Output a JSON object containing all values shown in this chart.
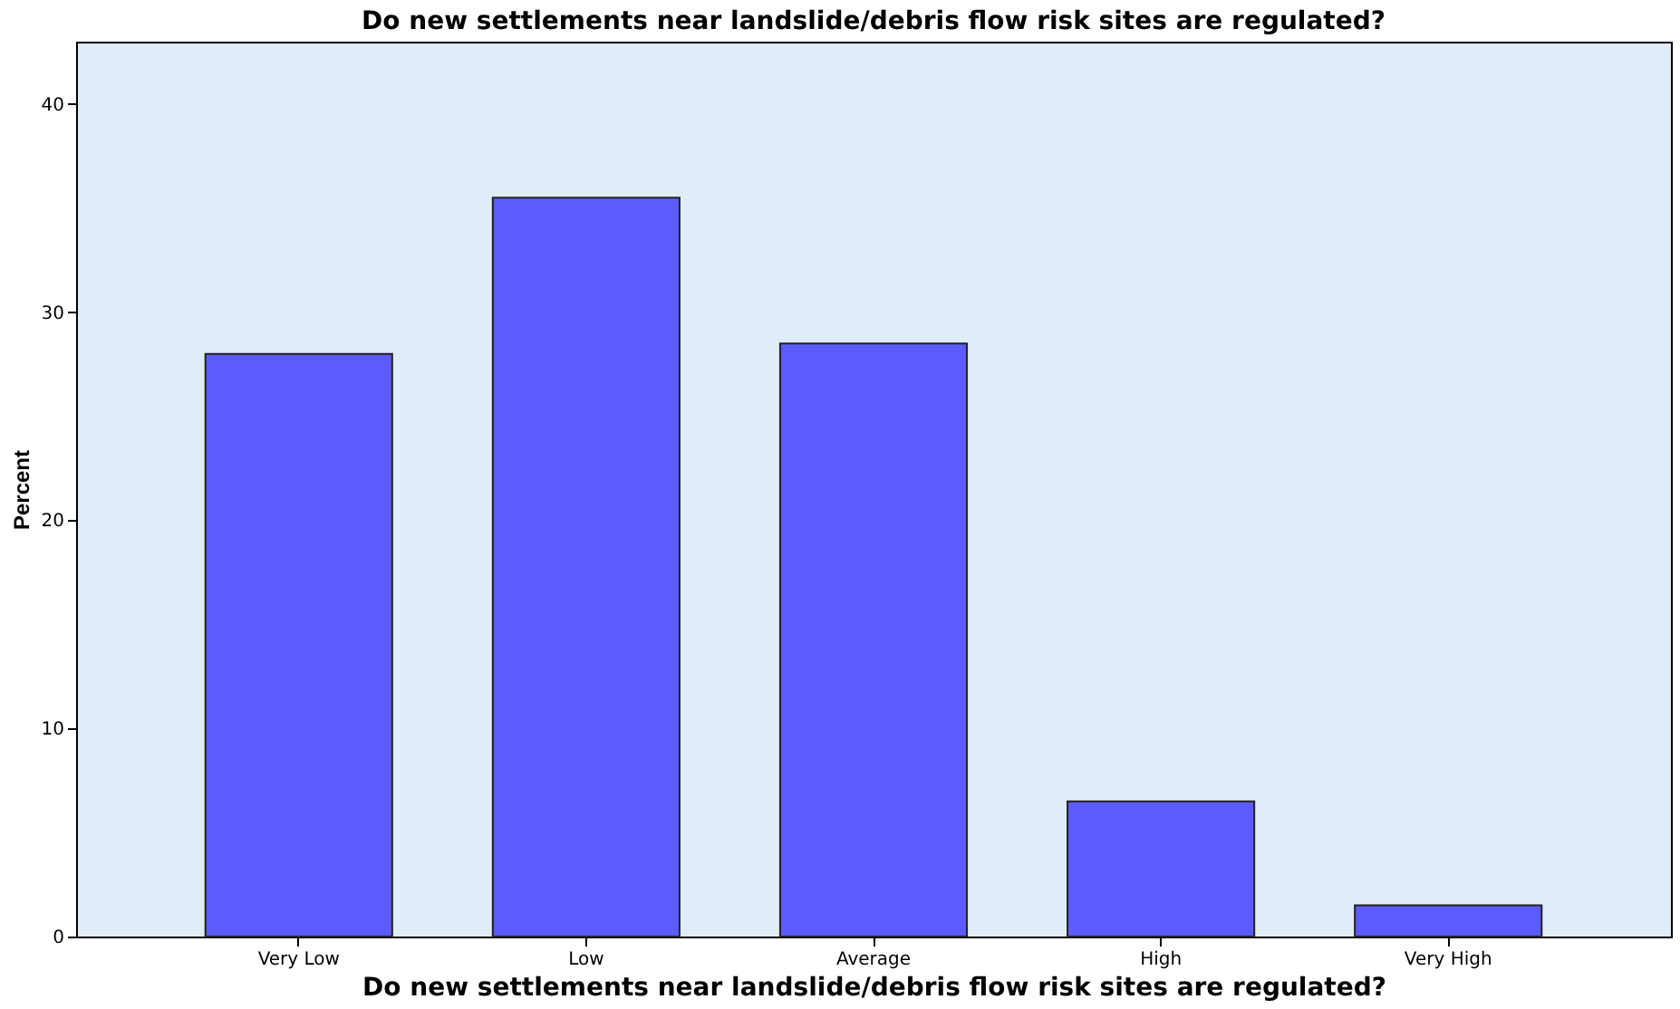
{
  "chart_data": {
    "type": "bar",
    "title": "Do new settlements near landslide/debris flow risk sites are regulated?",
    "xlabel": "Do new settlements near landslide/debris flow risk sites are regulated?",
    "ylabel": "Percent",
    "categories": [
      "Very Low",
      "Low",
      "Average",
      "High",
      "Very High"
    ],
    "values": [
      28,
      35.5,
      28.5,
      6.5,
      1.5
    ],
    "color": "#5b5bff",
    "ylim": [
      0,
      43
    ],
    "yticks": [
      0,
      10,
      20,
      30,
      40
    ],
    "grid": false
  }
}
